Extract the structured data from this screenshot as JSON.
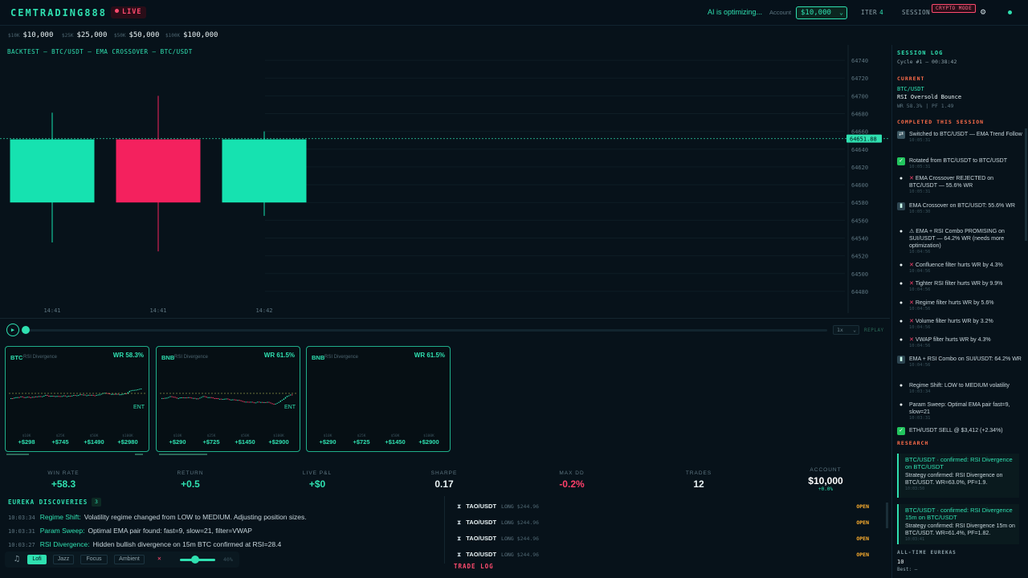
{
  "header": {
    "brand": "CEMTRADING888",
    "live_label": "LIVE",
    "ai_status": "AI is optimizing...",
    "account_label": "Account",
    "account_value": "$10,000",
    "iter_label": "ITER",
    "iter_value": "4",
    "session_label": "SESSION",
    "crypto_mode": "CRYPTO MODE"
  },
  "presets": [
    {
      "small": "$10K",
      "value": "$10,000"
    },
    {
      "small": "$25K",
      "value": "$25,000"
    },
    {
      "small": "$50K",
      "value": "$50,000"
    },
    {
      "small": "$100K",
      "value": "$100,000"
    }
  ],
  "chart_data": {
    "type": "candlestick",
    "title": "BACKTEST — BTC/USDT — EMA CROSSOVER — BTC/USDT",
    "ylim": [
      64470,
      64750
    ],
    "y_ticks": [
      64740,
      64720,
      64700,
      64680,
      64660,
      64640,
      64620,
      64600,
      64580,
      64560,
      64540,
      64520,
      64500,
      64480
    ],
    "current_price": "64651.88",
    "current_price_value": 64651.88,
    "x_ticks": [
      "14:41",
      "14:41",
      "14:42"
    ],
    "candles": [
      {
        "open": 64580,
        "close": 64651,
        "high": 64681,
        "low": 64535,
        "color": "#16e2b0"
      },
      {
        "open": 64651,
        "close": 64580,
        "high": 64700,
        "low": 64525,
        "color": "#f4215e"
      },
      {
        "open": 64580,
        "close": 64651,
        "high": 64660,
        "low": 64565,
        "color": "#16e2b0"
      }
    ]
  },
  "replay": {
    "play_icon": "▶",
    "speed": "1x",
    "label": "REPLAY"
  },
  "cards": [
    {
      "symbol": "BTC",
      "strategy": "RSI Divergence",
      "wr": "WR 58.3%",
      "ent": "ENT",
      "tiers": [
        {
          "small": "$10K",
          "value": "+$298"
        },
        {
          "small": "$25K",
          "value": "+$745"
        },
        {
          "small": "$50K",
          "value": "+$1490"
        },
        {
          "small": "$100K",
          "value": "+$2980"
        }
      ]
    },
    {
      "symbol": "BNB",
      "strategy": "RSI Divergence",
      "wr": "WR 61.5%",
      "ent": "ENT",
      "tiers": [
        {
          "small": "$10K",
          "value": "+$290"
        },
        {
          "small": "$25K",
          "value": "+$725"
        },
        {
          "small": "$50K",
          "value": "+$1450"
        },
        {
          "small": "$100K",
          "value": "+$2900"
        }
      ]
    },
    {
      "symbol": "BNB",
      "strategy": "RSI Divergence",
      "wr": "WR 61.5%",
      "ent": "",
      "tiers": [
        {
          "small": "$10K",
          "value": "+$290"
        },
        {
          "small": "$25K",
          "value": "+$725"
        },
        {
          "small": "$50K",
          "value": "+$1450"
        },
        {
          "small": "$100K",
          "value": "+$2900"
        }
      ]
    }
  ],
  "stats": [
    {
      "label": "WIN RATE",
      "value": "+58.3",
      "color": "#2fe0b0"
    },
    {
      "label": "RETURN",
      "value": "+0.5",
      "color": "#2fe0b0"
    },
    {
      "label": "LIVE P&L",
      "value": "+$0",
      "color": "#2fe0b0"
    },
    {
      "label": "SHARPE",
      "value": "0.17",
      "color": "#e8f2f4"
    },
    {
      "label": "MAX DD",
      "value": "-0.2%",
      "color": "#ff3f6a"
    },
    {
      "label": "TRADES",
      "value": "12",
      "color": "#e8f2f4"
    },
    {
      "label": "ACCOUNT",
      "value": "$10,000",
      "color": "#ffffff",
      "sub": "+0.0%"
    }
  ],
  "eureka": {
    "title": "EUREKA DISCOVERIES",
    "count": "3",
    "items": [
      {
        "time": "10:03:34",
        "key": "Regime Shift:",
        "msg": "Volatility regime changed from LOW to MEDIUM. Adjusting position sizes."
      },
      {
        "time": "10:03:31",
        "key": "Param Sweep:",
        "msg": "Optimal EMA pair found: fast=9, slow=21, filter=VWAP"
      },
      {
        "time": "10:03:27",
        "key": "RSI Divergence:",
        "msg": "Hidden bullish divergence on 15m BTC confirmed at RSI=28.4"
      }
    ]
  },
  "music": {
    "modes": [
      "Lofi",
      "Jazz",
      "Focus",
      "Ambient"
    ],
    "active": "Lofi",
    "volume": 0.4,
    "volume_pct": "40%"
  },
  "trades": [
    {
      "symbol": "TAO/USDT",
      "side": "LONG",
      "price": "$244.96",
      "status": "OPEN"
    },
    {
      "symbol": "TAO/USDT",
      "side": "LONG",
      "price": "$244.96",
      "status": "OPEN"
    },
    {
      "symbol": "TAO/USDT",
      "side": "LONG",
      "price": "$244.96",
      "status": "OPEN"
    },
    {
      "symbol": "TAO/USDT",
      "side": "LONG",
      "price": "$244.96",
      "status": "OPEN"
    }
  ],
  "trade_log_label": "TRADE LOG",
  "session_log": {
    "title": "SESSION LOG",
    "cycle": "Cycle #1 — 00:38:42",
    "current_label": "CURRENT",
    "current_pair": "BTC/USDT",
    "current_strategy": "RSI Oversold Bounce",
    "current_stats": "WR 58.3% | PF 1.49",
    "completed_label": "COMPLETED THIS SESSION",
    "entries": [
      {
        "icon": "sw",
        "text": "Switched to BTC/USDT — EMA Trend Follow",
        "ts": "10:05:31",
        "x": false
      },
      {
        "icon": "chk",
        "text": "Rotated from BTC/USDT to BTC/USDT",
        "ts": "10:05:31",
        "x": false
      },
      {
        "icon": "bulb",
        "text": "EMA Crossover REJECTED on BTC/USDT — 55.6% WR",
        "ts": "10:05:31",
        "x": true
      },
      {
        "icon": "bar",
        "text": "EMA Crossover on BTC/USDT: 55.6% WR",
        "ts": "10:05:30",
        "x": false
      },
      {
        "icon": "bulb",
        "text": "⚠ EMA + RSI Combo PROMISING on SUI/USDT — 64.2% WR (needs more optimization)",
        "ts": "10:04:56",
        "x": false
      },
      {
        "icon": "bulb",
        "text": "Confluence filter hurts WR by 4.3%",
        "ts": "10:04:56",
        "x": true
      },
      {
        "icon": "bulb",
        "text": "Tighter RSI filter hurts WR by 9.9%",
        "ts": "10:04:56",
        "x": true
      },
      {
        "icon": "bulb",
        "text": "Regime filter hurts WR by 5.6%",
        "ts": "10:04:56",
        "x": true
      },
      {
        "icon": "bulb",
        "text": "Volume filter hurts WR by 3.2%",
        "ts": "10:04:56",
        "x": true
      },
      {
        "icon": "bulb",
        "text": "VWAP filter hurts WR by 4.3%",
        "ts": "10:04:56",
        "x": true
      },
      {
        "icon": "bar",
        "text": "EMA + RSI Combo on SUI/USDT: 64.2% WR",
        "ts": "10:04:56",
        "x": false
      },
      {
        "icon": "bulb",
        "text": "Regime Shift: LOW to MEDIUM volatility",
        "ts": "10:03:34",
        "x": false
      },
      {
        "icon": "bulb",
        "text": "Param Sweep: Optimal EMA pair fast=9, slow=21",
        "ts": "10:03:31",
        "x": false
      },
      {
        "icon": "chk",
        "text": "ETH/USDT SELL @ $3,412 (+2.34%)",
        "ts": "",
        "x": false
      }
    ],
    "research_label": "RESEARCH",
    "research": [
      {
        "head": "BTC/USDT · confirmed: RSI Divergence on BTC/USDT",
        "body": "Strategy confirmed: RSI Divergence on BTC/USDT. WR=63.0%, PF=1.9.",
        "ts": "10:03:50"
      },
      {
        "head": "BTC/USDT · confirmed: RSI Divergence 15m on BTC/USDT",
        "body": "Strategy confirmed: RSI Divergence 15m on BTC/USDT. WR=61.4%, PF=1.82.",
        "ts": "10:03:41"
      }
    ],
    "alltime_label": "ALL-TIME EUREKAS",
    "alltime_count": "10",
    "best": "Best: —"
  }
}
